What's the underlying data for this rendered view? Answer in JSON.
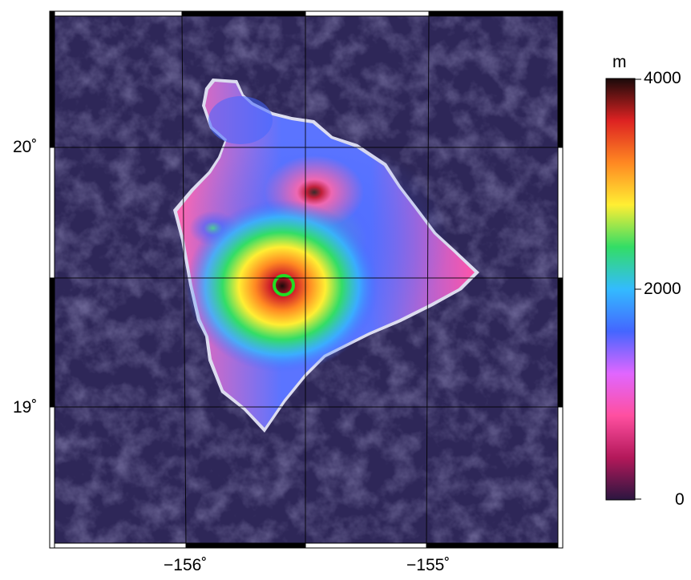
{
  "map": {
    "lat_labels": [
      "20˚",
      "19˚"
    ],
    "lon_labels": [
      "−156˚",
      "−155˚"
    ],
    "marker": {
      "type": "circle",
      "color": "#22dd22"
    },
    "colors": {
      "ocean": "#2e2758",
      "frame_dark": "#000000",
      "frame_light": "#ffffff",
      "grid": "#000000"
    }
  },
  "colorbar": {
    "unit": "m",
    "ticks": [
      {
        "value": 4000,
        "label": "4000"
      },
      {
        "value": 2000,
        "label": "2000"
      },
      {
        "value": 0,
        "label": "0"
      }
    ],
    "range": [
      0,
      4000
    ],
    "palette": [
      "#2b1640",
      "#b3185a",
      "#ff4fa0",
      "#e066ff",
      "#4466ff",
      "#33bbff",
      "#33dd66",
      "#ffee33",
      "#ff8822",
      "#dd2222",
      "#1a0a0a"
    ]
  }
}
